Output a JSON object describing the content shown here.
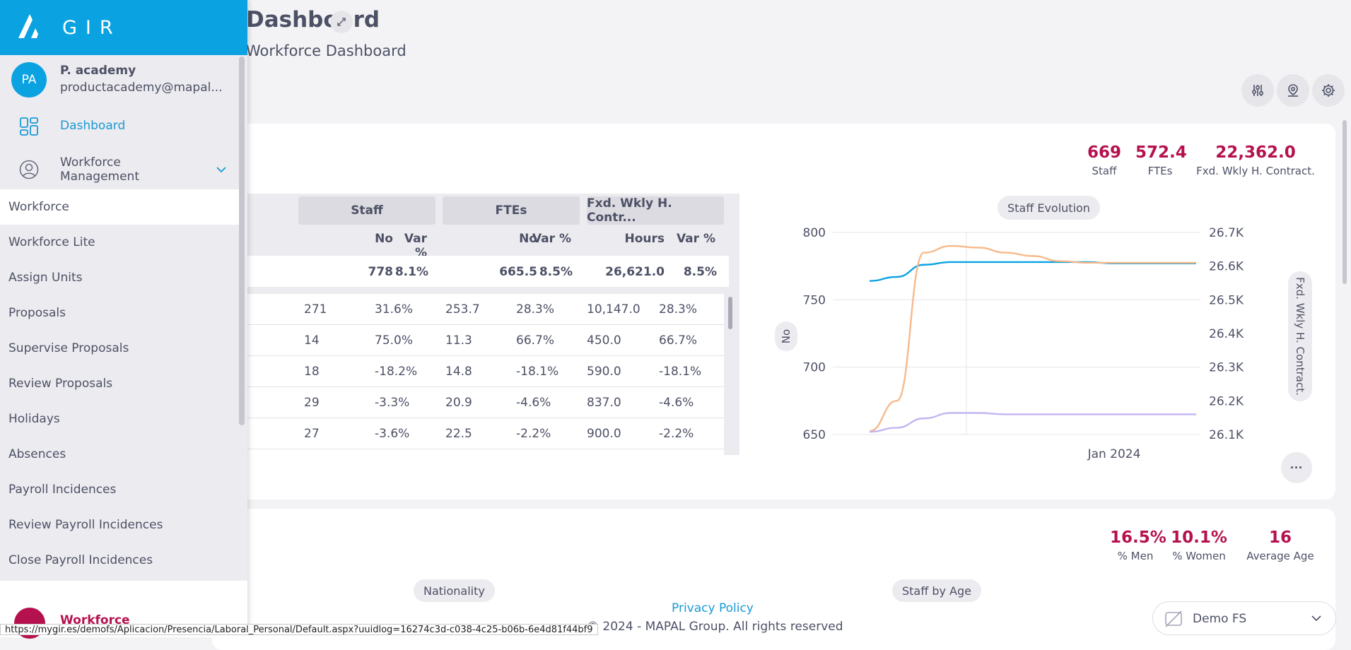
{
  "page": {
    "title": "Dashboard",
    "subtitle": "Workforce Dashboard"
  },
  "sidebar": {
    "brand": "GIR",
    "user": {
      "initials": "PA",
      "name": "P. academy",
      "email": "productacademy@mapal..."
    },
    "dashboard_label": "Dashboard",
    "workforce_mgmt_label": "Workforce Management",
    "submenu": [
      "Workforce",
      "Workforce Lite",
      "Assign Units",
      "Proposals",
      "Supervise Proposals",
      "Review Proposals",
      "Holidays",
      "Absences",
      "Payroll Incidences",
      "Review Payroll Incidences",
      "Close Payroll Incidences"
    ],
    "active_item": "Workforce",
    "bottom_label": "Workforce"
  },
  "kpis_top": [
    {
      "value": "669",
      "label": "Staff"
    },
    {
      "value": "572.4",
      "label": "FTEs"
    },
    {
      "value": "22,362.0",
      "label": "Fxd. Wkly H. Contract."
    }
  ],
  "table": {
    "groups": [
      "Staff",
      "FTEs",
      "Fxd. Wkly H. Contr..."
    ],
    "subheaders": [
      "No",
      "Var %",
      "No",
      "Var %",
      "Hours",
      "Var %"
    ],
    "total": [
      "778",
      "8.1%",
      "665.5",
      "8.5%",
      "26,621.0",
      "8.5%"
    ],
    "rows": [
      [
        "271",
        "31.6%",
        "253.7",
        "28.3%",
        "10,147.0",
        "28.3%"
      ],
      [
        "14",
        "75.0%",
        "11.3",
        "66.7%",
        "450.0",
        "66.7%"
      ],
      [
        "18",
        "-18.2%",
        "14.8",
        "-18.1%",
        "590.0",
        "-18.1%"
      ],
      [
        "29",
        "-3.3%",
        "20.9",
        "-4.6%",
        "837.0",
        "-4.6%"
      ],
      [
        "27",
        "-3.6%",
        "22.5",
        "-2.2%",
        "900.0",
        "-2.2%"
      ]
    ]
  },
  "chart_data": {
    "type": "line",
    "title": "Staff Evolution",
    "ylabel": "No",
    "y2label": "Fxd. Wkly H. Contract.",
    "ylim": [
      650,
      800
    ],
    "y_ticks": [
      "800",
      "750",
      "700",
      "650"
    ],
    "y2lim": [
      26100,
      26700
    ],
    "y2_ticks": [
      "26.7K",
      "26.6K",
      "26.5K",
      "26.4K",
      "26.3K",
      "26.2K",
      "26.1K"
    ],
    "x_tick_label": "Jan 2024",
    "series": [
      {
        "axis": "left",
        "color": "#0aa2e1",
        "values": [
          764,
          767,
          776,
          778,
          778,
          778,
          778,
          778,
          778,
          777,
          777,
          777,
          777
        ]
      },
      {
        "axis": "right",
        "color": "#f7b98a",
        "values": [
          26110,
          26200,
          26640,
          26660,
          26655,
          26640,
          26630,
          26615,
          26610,
          26610,
          26610,
          26610,
          26610
        ]
      },
      {
        "axis": "left",
        "color": "#c4b5f2",
        "values": [
          652,
          655,
          662,
          666,
          666,
          665,
          665,
          665,
          665,
          665,
          665,
          665,
          665
        ]
      }
    ]
  },
  "kpis_bottom": [
    {
      "value": "16.5%",
      "label": "% Men"
    },
    {
      "value": "10.1%",
      "label": "% Women"
    },
    {
      "value": "16",
      "label": "Average Age"
    }
  ],
  "card2_pills": [
    "Nationality",
    "Staff by Age"
  ],
  "footer": {
    "privacy": "Privacy Policy",
    "copyright": "© 2024 - MAPAL Group. All rights reserved"
  },
  "company_selector": "Demo FS",
  "status_url": "https://mygir.es/demofs/Aplicacion/Presencia/Laboral_Personal/Default.aspx?uuidlog=16274c3d-c038-4c25-b06b-6e4d81f44bf9"
}
